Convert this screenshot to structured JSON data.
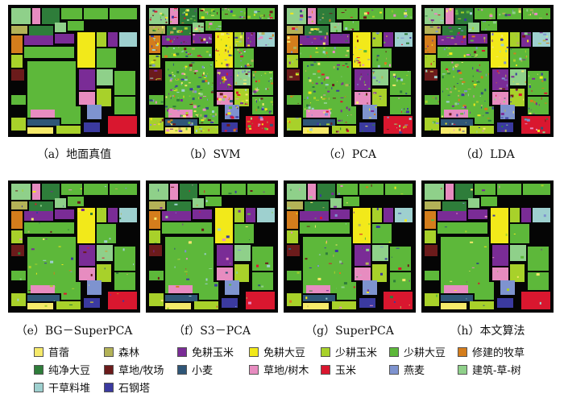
{
  "panels": [
    {
      "caption": "（a）地面真值",
      "noise": 0
    },
    {
      "caption": "（b）SVM",
      "noise": 0.85
    },
    {
      "caption": "（c）PCA",
      "noise": 0.45
    },
    {
      "caption": "（d）LDA",
      "noise": 0.5
    },
    {
      "caption": "（e）BG－SuperPCA",
      "noise": 0.12
    },
    {
      "caption": "（f）S3－PCA",
      "noise": 0.1
    },
    {
      "caption": "（g）SuperPCA",
      "noise": 0.14
    },
    {
      "caption": "（h）本文算法",
      "noise": 0.05
    }
  ],
  "legend": [
    {
      "label": "苜蓿",
      "color": "#f5e96a"
    },
    {
      "label": "森林",
      "color": "#b3b257"
    },
    {
      "label": "免耕玉米",
      "color": "#7a2c96"
    },
    {
      "label": "免耕大豆",
      "color": "#f2e91a"
    },
    {
      "label": "少耕玉米",
      "color": "#a8d12a"
    },
    {
      "label": "少耕大豆",
      "color": "#5db83a"
    },
    {
      "label": "修建的牧草",
      "color": "#d47d1c"
    },
    {
      "label": "纯净大豆",
      "color": "#2e7d3a"
    },
    {
      "label": "草地/牧场",
      "color": "#6b1b1b"
    },
    {
      "label": "小麦",
      "color": "#2f5677"
    },
    {
      "label": "草地/树木",
      "color": "#e78cc0"
    },
    {
      "label": "玉米",
      "color": "#d9172f"
    },
    {
      "label": "燕麦",
      "color": "#7e93cf"
    },
    {
      "label": "建筑-草-树",
      "color": "#8fd08a"
    },
    {
      "label": "干草料堆",
      "color": "#9ed0cf"
    },
    {
      "label": "石钢塔",
      "color": "#3b3aa0"
    }
  ]
}
